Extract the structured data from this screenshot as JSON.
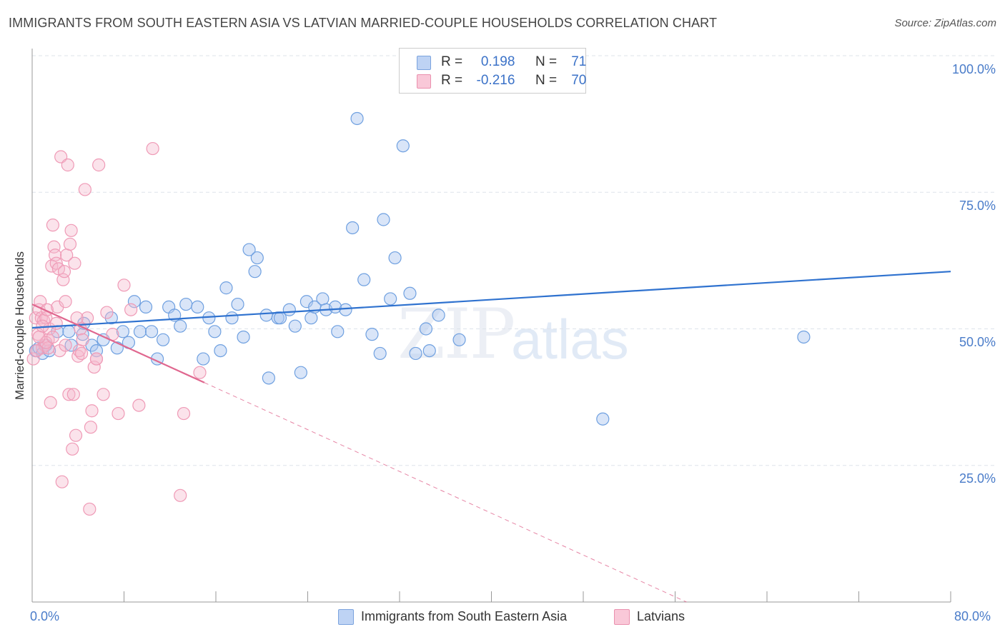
{
  "title": "IMMIGRANTS FROM SOUTH EASTERN ASIA VS LATVIAN MARRIED-COUPLE HOUSEHOLDS CORRELATION CHART",
  "source": "Source: ZipAtlas.com",
  "watermark": {
    "zip": "ZIP",
    "atlas": "atlas"
  },
  "legend": {
    "rows": [
      {
        "r_label": "R =",
        "r_value": "0.198",
        "n_label": "N =",
        "n_value": "71",
        "color": "#a9c4ee"
      },
      {
        "r_label": "R =",
        "r_value": "-0.216",
        "n_label": "N =",
        "n_value": "70",
        "color": "#f5b5c9"
      }
    ]
  },
  "bottom_legend": {
    "series1": "Immigrants from South Eastern Asia",
    "series2": "Latvians"
  },
  "chart_data": {
    "type": "scatter",
    "title": "IMMIGRANTS FROM SOUTH EASTERN ASIA VS LATVIAN MARRIED-COUPLE HOUSEHOLDS CORRELATION CHART",
    "xlabel": "",
    "ylabel": "Married-couple Households",
    "xlim": [
      0,
      80
    ],
    "ylim": [
      0,
      100
    ],
    "x_tick_labels": [
      "0.0%",
      "80.0%"
    ],
    "y_tick_labels": [
      "25.0%",
      "50.0%",
      "75.0%",
      "100.0%"
    ],
    "y_ticks": [
      25,
      50,
      75,
      100
    ],
    "x_ticks": [
      0,
      8,
      16,
      24,
      32,
      40,
      48,
      56,
      64,
      72,
      80
    ],
    "series": [
      {
        "name": "Immigrants from South Eastern Asia",
        "color": "#6fa0e0",
        "trend": {
          "x0": 0,
          "y0": 50.2,
          "x1": 80,
          "y1": 60.5,
          "solid_to": 80
        },
        "points": [
          [
            0.3,
            46
          ],
          [
            0.6,
            46.5
          ],
          [
            0.9,
            45.5
          ],
          [
            1.2,
            47
          ],
          [
            1.5,
            46
          ],
          [
            2.2,
            49.5
          ],
          [
            3.2,
            49.5
          ],
          [
            3.4,
            47
          ],
          [
            4.4,
            49
          ],
          [
            4.5,
            51
          ],
          [
            5.2,
            47
          ],
          [
            5.6,
            46
          ],
          [
            6.2,
            48
          ],
          [
            6.9,
            52
          ],
          [
            7.4,
            46.5
          ],
          [
            7.9,
            49.5
          ],
          [
            8.4,
            47.5
          ],
          [
            8.9,
            55
          ],
          [
            9.4,
            49.5
          ],
          [
            9.9,
            54
          ],
          [
            10.4,
            49.5
          ],
          [
            10.9,
            44.5
          ],
          [
            11.4,
            48
          ],
          [
            11.9,
            54
          ],
          [
            12.4,
            52.5
          ],
          [
            12.9,
            50.5
          ],
          [
            13.4,
            54.5
          ],
          [
            14.4,
            54
          ],
          [
            14.9,
            44.5
          ],
          [
            15.4,
            52
          ],
          [
            15.9,
            49.5
          ],
          [
            16.4,
            46
          ],
          [
            16.9,
            57.5
          ],
          [
            17.4,
            52
          ],
          [
            17.9,
            54.5
          ],
          [
            18.4,
            48.5
          ],
          [
            18.9,
            64.5
          ],
          [
            19.4,
            60.5
          ],
          [
            19.6,
            63
          ],
          [
            20.4,
            52.5
          ],
          [
            20.6,
            41
          ],
          [
            21.4,
            52
          ],
          [
            21.6,
            52
          ],
          [
            22.4,
            53.5
          ],
          [
            22.9,
            50.5
          ],
          [
            23.4,
            42
          ],
          [
            23.9,
            55
          ],
          [
            24.3,
            52
          ],
          [
            24.6,
            54
          ],
          [
            25.3,
            55.5
          ],
          [
            25.6,
            53.5
          ],
          [
            26.4,
            54
          ],
          [
            26.6,
            49.5
          ],
          [
            27.3,
            53.5
          ],
          [
            27.9,
            68.5
          ],
          [
            28.3,
            88.5
          ],
          [
            28.9,
            59
          ],
          [
            29.6,
            49
          ],
          [
            30.3,
            45.5
          ],
          [
            30.6,
            70
          ],
          [
            31.2,
            55.5
          ],
          [
            31.6,
            63
          ],
          [
            32.3,
            83.5
          ],
          [
            32.9,
            56.5
          ],
          [
            33.4,
            45.5
          ],
          [
            34.3,
            50
          ],
          [
            34.6,
            46
          ],
          [
            35.4,
            52.5
          ],
          [
            37.2,
            48
          ],
          [
            49.7,
            33.5
          ],
          [
            67.2,
            48.5
          ]
        ]
      },
      {
        "name": "Latvians",
        "color": "#ef9ab6",
        "trend": {
          "x0": 0,
          "y0": 54.5,
          "x1": 80,
          "y1": -22,
          "solid_to": 15
        },
        "points": [
          [
            0.1,
            44.5
          ],
          [
            0.3,
            52
          ],
          [
            0.5,
            49
          ],
          [
            0.6,
            53.5
          ],
          [
            0.7,
            55
          ],
          [
            0.8,
            52
          ],
          [
            0.9,
            46.5
          ],
          [
            1.0,
            51.5
          ],
          [
            1.1,
            47
          ],
          [
            1.2,
            52
          ],
          [
            1.3,
            53.5
          ],
          [
            1.4,
            48
          ],
          [
            1.5,
            50
          ],
          [
            1.6,
            36.5
          ],
          [
            1.7,
            61.5
          ],
          [
            1.8,
            69
          ],
          [
            1.9,
            65
          ],
          [
            2.0,
            63.5
          ],
          [
            2.1,
            62
          ],
          [
            2.2,
            54
          ],
          [
            2.3,
            61
          ],
          [
            2.4,
            46
          ],
          [
            2.5,
            81.5
          ],
          [
            2.6,
            22
          ],
          [
            2.7,
            59
          ],
          [
            2.8,
            60.5
          ],
          [
            2.9,
            55
          ],
          [
            3.0,
            63.5
          ],
          [
            3.1,
            80
          ],
          [
            3.2,
            38
          ],
          [
            3.3,
            65.5
          ],
          [
            3.4,
            68
          ],
          [
            3.5,
            28
          ],
          [
            3.6,
            38
          ],
          [
            3.7,
            62
          ],
          [
            3.8,
            30.5
          ],
          [
            4.0,
            45
          ],
          [
            4.1,
            46
          ],
          [
            4.2,
            50
          ],
          [
            4.4,
            48
          ],
          [
            4.6,
            75.5
          ],
          [
            4.8,
            52
          ],
          [
            5.0,
            17
          ],
          [
            5.1,
            32
          ],
          [
            5.2,
            35
          ],
          [
            5.4,
            43
          ],
          [
            5.6,
            44.5
          ],
          [
            5.8,
            80
          ],
          [
            6.2,
            38
          ],
          [
            6.5,
            53
          ],
          [
            7.0,
            49
          ],
          [
            7.5,
            34.5
          ],
          [
            8.0,
            58
          ],
          [
            8.6,
            53.5
          ],
          [
            9.3,
            36
          ],
          [
            10.5,
            83
          ],
          [
            12.9,
            19.5
          ],
          [
            13.2,
            34.5
          ],
          [
            14.6,
            42
          ],
          [
            1.4,
            46.5
          ],
          [
            0.9,
            50.5
          ],
          [
            2.9,
            47
          ],
          [
            3.9,
            52
          ],
          [
            4.3,
            45.5
          ],
          [
            1.2,
            47.5
          ],
          [
            2.1,
            51
          ],
          [
            0.4,
            46
          ],
          [
            0.6,
            48.5
          ],
          [
            1.8,
            48.5
          ],
          [
            5.6,
            44.5
          ]
        ]
      }
    ]
  }
}
